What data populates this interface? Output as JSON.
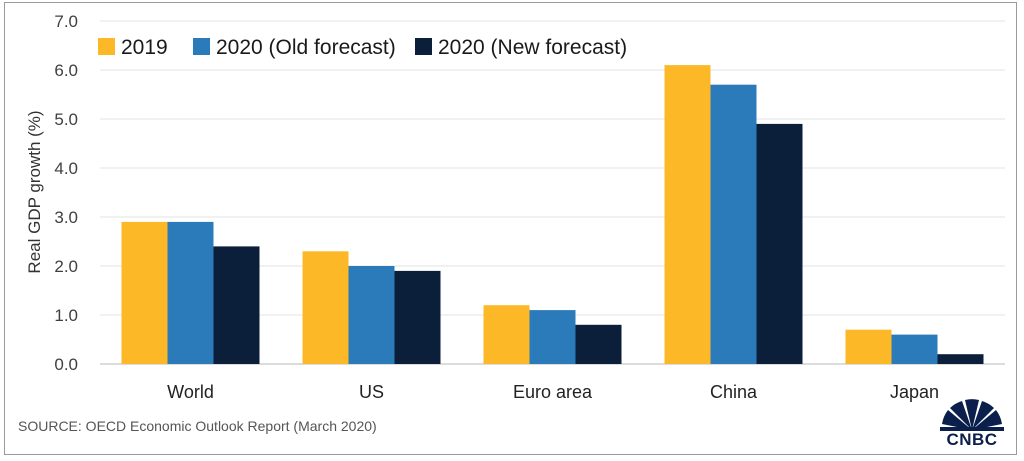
{
  "chart_data": {
    "type": "bar",
    "title": "",
    "xlabel": "",
    "ylabel": "Real GDP growth (%)",
    "ylim": [
      0,
      7
    ],
    "yticks": [
      "0.0",
      "1.0",
      "2.0",
      "3.0",
      "4.0",
      "5.0",
      "6.0",
      "7.0"
    ],
    "categories": [
      "World",
      "US",
      "Euro area",
      "China",
      "Japan"
    ],
    "series": [
      {
        "name": "2019",
        "color": "#FDB827",
        "values": [
          2.9,
          2.3,
          1.2,
          6.1,
          0.7
        ]
      },
      {
        "name": "2020 (Old forecast)",
        "color": "#2B7BBA",
        "values": [
          2.9,
          2.0,
          1.1,
          5.7,
          0.6
        ]
      },
      {
        "name": "2020 (New forecast)",
        "color": "#0B1F3A",
        "values": [
          2.4,
          1.9,
          0.8,
          4.9,
          0.2
        ]
      }
    ],
    "grid": true,
    "legend_position": "top-left"
  },
  "source": "SOURCE: OECD Economic Outlook Report (March 2020)",
  "logo": {
    "name": "cnbc-peacock-logo",
    "text": "CNBC"
  }
}
